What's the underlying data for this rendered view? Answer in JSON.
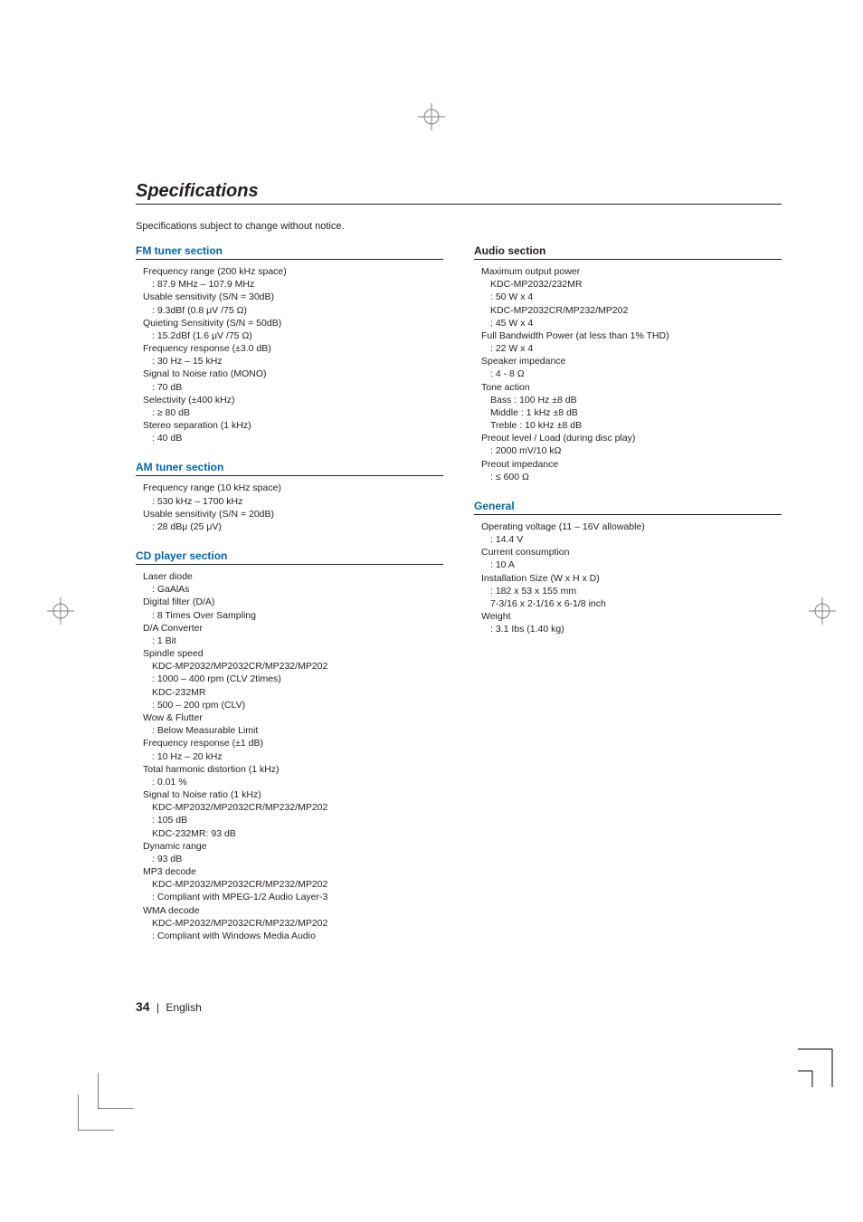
{
  "title": "Specifications",
  "intro": "Specifications subject to change without notice.",
  "colors": {
    "accent_blue": "#0066b3",
    "text": "#231f20",
    "rule": "#231f20",
    "background": "#ffffff"
  },
  "typography": {
    "title_size_pt": 15,
    "title_style": "bold italic",
    "section_head_size_pt": 9,
    "section_head_weight": "bold",
    "body_size_pt": 8,
    "footer_page_size_pt": 11
  },
  "left_sections": [
    {
      "heading": "FM tuner section",
      "heading_color": "#0066b3",
      "items": [
        {
          "label": "Frequency range (200 kHz space)",
          "values": [
            ": 87.9 MHz – 107.9 MHz"
          ]
        },
        {
          "label": "Usable sensitivity (S/N = 30dB)",
          "values": [
            ": 9.3dBf (0.8 μV /75 Ω)"
          ]
        },
        {
          "label": "Quieting Sensitivity (S/N = 50dB)",
          "values": [
            ": 15.2dBf (1.6 μV /75 Ω)"
          ]
        },
        {
          "label": "Frequency response (±3.0 dB)",
          "values": [
            ": 30 Hz – 15 kHz"
          ]
        },
        {
          "label": "Signal to Noise ratio (MONO)",
          "values": [
            ": 70 dB"
          ]
        },
        {
          "label": "Selectivity (±400 kHz)",
          "values": [
            ": ≥ 80 dB"
          ]
        },
        {
          "label": "Stereo separation (1 kHz)",
          "values": [
            ": 40 dB"
          ]
        }
      ]
    },
    {
      "heading": "AM tuner section",
      "heading_color": "#0066b3",
      "items": [
        {
          "label": "Frequency range (10 kHz space)",
          "values": [
            ": 530 kHz – 1700 kHz"
          ]
        },
        {
          "label": "Usable sensitivity (S/N = 20dB)",
          "values": [
            ": 28 dBμ (25 μV)"
          ]
        }
      ]
    },
    {
      "heading": "CD player section",
      "heading_color": "#0066b3",
      "items": [
        {
          "label": "Laser diode",
          "values": [
            ": GaAlAs"
          ]
        },
        {
          "label": "Digital filter (D/A)",
          "values": [
            ": 8 Times Over Sampling"
          ]
        },
        {
          "label": "D/A Converter",
          "values": [
            ": 1 Bit"
          ]
        },
        {
          "label": "Spindle speed",
          "values": [
            "KDC-MP2032/MP2032CR/MP232/MP202",
            ": 1000 – 400 rpm (CLV 2times)",
            "KDC-232MR",
            ": 500 – 200 rpm (CLV)"
          ]
        },
        {
          "label": "Wow & Flutter",
          "values": [
            ": Below Measurable Limit"
          ]
        },
        {
          "label": "Frequency response (±1 dB)",
          "values": [
            ": 10 Hz – 20 kHz"
          ]
        },
        {
          "label": "Total harmonic distortion (1 kHz)",
          "values": [
            ": 0.01 %"
          ]
        },
        {
          "label": "Signal to Noise ratio (1 kHz)",
          "values": [
            "KDC-MP2032/MP2032CR/MP232/MP202",
            ": 105 dB",
            "KDC-232MR: 93 dB"
          ]
        },
        {
          "label": "Dynamic range",
          "values": [
            ": 93 dB"
          ]
        },
        {
          "label": "MP3 decode",
          "values": [
            "KDC-MP2032/MP2032CR/MP232/MP202",
            ": Compliant with MPEG-1/2 Audio Layer-3"
          ]
        },
        {
          "label": "WMA decode",
          "values": [
            "KDC-MP2032/MP2032CR/MP232/MP202",
            ": Compliant with Windows Media Audio"
          ]
        }
      ]
    }
  ],
  "right_sections": [
    {
      "heading": "Audio section",
      "heading_color": "#231f20",
      "items": [
        {
          "label": "Maximum output power",
          "values": [
            "KDC-MP2032/232MR",
            ": 50 W x 4",
            "KDC-MP2032CR/MP232/MP202",
            ": 45 W x 4"
          ]
        },
        {
          "label": "Full Bandwidth Power (at less than 1% THD)",
          "values": [
            ": 22 W x 4"
          ]
        },
        {
          "label": "Speaker impedance",
          "values": [
            ": 4 - 8 Ω"
          ]
        },
        {
          "label": "Tone action",
          "values": [
            "Bass : 100 Hz ±8 dB",
            "Middle : 1 kHz ±8 dB",
            "Treble : 10 kHz ±8 dB"
          ]
        },
        {
          "label": "Preout level / Load (during disc play)",
          "values": [
            ": 2000 mV/10 kΩ"
          ]
        },
        {
          "label": "Preout impedance",
          "values": [
            ": ≤ 600 Ω"
          ]
        }
      ]
    },
    {
      "heading": "General",
      "heading_color": "#0066b3",
      "items": [
        {
          "label": "Operating voltage (11 – 16V allowable)",
          "values": [
            ": 14.4 V"
          ]
        },
        {
          "label": "Current consumption",
          "values": [
            ": 10 A"
          ]
        },
        {
          "label": "Installation Size (W x H x D)",
          "values": [
            ": 182 x 53 x 155 mm",
            "  7-3/16 x 2-1/16 x 6-1/8 inch"
          ]
        },
        {
          "label": "Weight",
          "values": [
            ": 3.1 Ibs (1.40 kg)"
          ]
        }
      ]
    }
  ],
  "footer": {
    "page": "34",
    "label": "English"
  },
  "registration_mark_color": "#808080",
  "crop_mark_color": "#000000"
}
